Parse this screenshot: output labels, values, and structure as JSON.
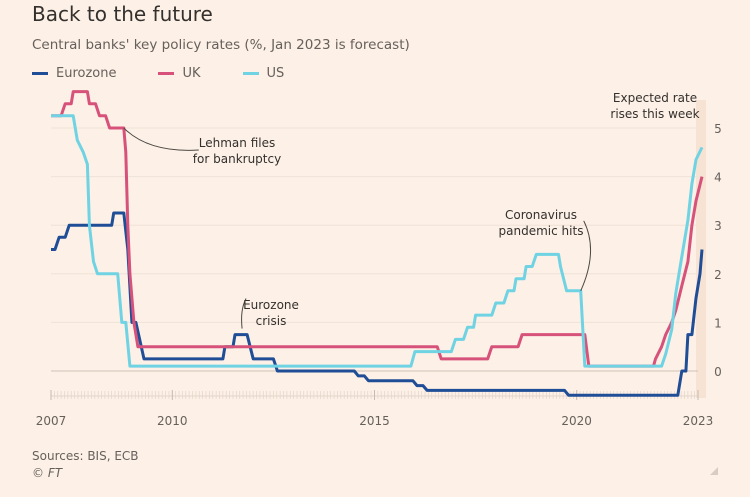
{
  "header": {
    "title": "Back to the future",
    "subtitle": "Central banks' key policy rates (%, Jan 2023 is forecast)"
  },
  "footer": {
    "sources": "Sources: BIS, ECB",
    "copyright": "© FT"
  },
  "chart_data": {
    "type": "line",
    "title": "Back to the future",
    "subtitle": "Central banks' key policy rates (%, Jan 2023 is forecast)",
    "xlabel": "",
    "ylabel": "%",
    "xlim": [
      2007,
      2023
    ],
    "ylim": [
      -0.6,
      5.5
    ],
    "x_ticks": [
      2007,
      2010,
      2015,
      2020,
      2023
    ],
    "y_ticks": [
      0,
      1,
      2,
      3,
      4,
      5
    ],
    "grid": true,
    "legend_position": "top-left",
    "series": [
      {
        "name": "Eurozone",
        "color": "#1f4e96",
        "points": [
          [
            2007.0,
            2.5
          ],
          [
            2007.1,
            2.5
          ],
          [
            2007.2,
            2.75
          ],
          [
            2007.35,
            2.75
          ],
          [
            2007.45,
            3.0
          ],
          [
            2008.5,
            3.0
          ],
          [
            2008.55,
            3.25
          ],
          [
            2008.8,
            3.25
          ],
          [
            2008.9,
            2.5
          ],
          [
            2009.0,
            1.0
          ],
          [
            2009.1,
            1.0
          ],
          [
            2009.3,
            0.25
          ],
          [
            2011.25,
            0.25
          ],
          [
            2011.3,
            0.5
          ],
          [
            2011.5,
            0.5
          ],
          [
            2011.55,
            0.75
          ],
          [
            2011.85,
            0.75
          ],
          [
            2012.0,
            0.25
          ],
          [
            2012.5,
            0.25
          ],
          [
            2012.6,
            0.0
          ],
          [
            2014.5,
            0.0
          ],
          [
            2014.6,
            -0.1
          ],
          [
            2014.75,
            -0.1
          ],
          [
            2014.85,
            -0.2
          ],
          [
            2015.95,
            -0.2
          ],
          [
            2016.05,
            -0.3
          ],
          [
            2016.2,
            -0.3
          ],
          [
            2016.3,
            -0.4
          ],
          [
            2019.7,
            -0.4
          ],
          [
            2019.8,
            -0.5
          ],
          [
            2022.5,
            -0.5
          ],
          [
            2022.6,
            0.0
          ],
          [
            2022.7,
            0.0
          ],
          [
            2022.75,
            0.75
          ],
          [
            2022.85,
            0.75
          ],
          [
            2022.95,
            1.5
          ],
          [
            2023.05,
            2.0
          ],
          [
            2023.1,
            2.5
          ]
        ]
      },
      {
        "name": "UK",
        "color": "#d6527a",
        "points": [
          [
            2007.0,
            5.25
          ],
          [
            2007.25,
            5.25
          ],
          [
            2007.35,
            5.5
          ],
          [
            2007.5,
            5.5
          ],
          [
            2007.55,
            5.75
          ],
          [
            2007.9,
            5.75
          ],
          [
            2007.95,
            5.5
          ],
          [
            2008.1,
            5.5
          ],
          [
            2008.2,
            5.25
          ],
          [
            2008.35,
            5.25
          ],
          [
            2008.45,
            5.0
          ],
          [
            2008.8,
            5.0
          ],
          [
            2008.85,
            4.5
          ],
          [
            2008.9,
            3.0
          ],
          [
            2008.95,
            2.0
          ],
          [
            2009.05,
            1.0
          ],
          [
            2009.15,
            0.5
          ],
          [
            2016.55,
            0.5
          ],
          [
            2016.65,
            0.25
          ],
          [
            2017.8,
            0.25
          ],
          [
            2017.9,
            0.5
          ],
          [
            2018.55,
            0.5
          ],
          [
            2018.65,
            0.75
          ],
          [
            2020.2,
            0.75
          ],
          [
            2020.3,
            0.1
          ],
          [
            2021.9,
            0.1
          ],
          [
            2021.95,
            0.25
          ],
          [
            2022.1,
            0.5
          ],
          [
            2022.2,
            0.75
          ],
          [
            2022.35,
            1.0
          ],
          [
            2022.45,
            1.25
          ],
          [
            2022.6,
            1.75
          ],
          [
            2022.75,
            2.25
          ],
          [
            2022.85,
            3.0
          ],
          [
            2022.95,
            3.5
          ],
          [
            2023.1,
            4.0
          ]
        ]
      },
      {
        "name": "US",
        "color": "#6fd3e3",
        "points": [
          [
            2007.0,
            5.25
          ],
          [
            2007.55,
            5.25
          ],
          [
            2007.65,
            4.75
          ],
          [
            2007.8,
            4.5
          ],
          [
            2007.9,
            4.25
          ],
          [
            2007.95,
            3.0
          ],
          [
            2008.05,
            2.25
          ],
          [
            2008.15,
            2.0
          ],
          [
            2008.65,
            2.0
          ],
          [
            2008.75,
            1.0
          ],
          [
            2008.85,
            1.0
          ],
          [
            2008.95,
            0.1
          ],
          [
            2015.9,
            0.1
          ],
          [
            2016.0,
            0.4
          ],
          [
            2016.9,
            0.4
          ],
          [
            2017.0,
            0.65
          ],
          [
            2017.2,
            0.65
          ],
          [
            2017.3,
            0.9
          ],
          [
            2017.45,
            0.9
          ],
          [
            2017.5,
            1.15
          ],
          [
            2017.9,
            1.15
          ],
          [
            2018.0,
            1.4
          ],
          [
            2018.2,
            1.4
          ],
          [
            2018.3,
            1.65
          ],
          [
            2018.45,
            1.65
          ],
          [
            2018.5,
            1.9
          ],
          [
            2018.7,
            1.9
          ],
          [
            2018.75,
            2.15
          ],
          [
            2018.9,
            2.15
          ],
          [
            2019.0,
            2.4
          ],
          [
            2019.55,
            2.4
          ],
          [
            2019.6,
            2.15
          ],
          [
            2019.75,
            1.65
          ],
          [
            2020.1,
            1.65
          ],
          [
            2020.2,
            0.1
          ],
          [
            2022.1,
            0.1
          ],
          [
            2022.2,
            0.35
          ],
          [
            2022.35,
            0.85
          ],
          [
            2022.45,
            1.6
          ],
          [
            2022.6,
            2.35
          ],
          [
            2022.75,
            3.1
          ],
          [
            2022.85,
            3.85
          ],
          [
            2022.95,
            4.35
          ],
          [
            2023.1,
            4.6
          ]
        ]
      }
    ],
    "annotations": [
      {
        "id": "lehman",
        "lines": [
          "Lehman files",
          "for bankruptcy"
        ],
        "x": 2008.8,
        "y": 5.0
      },
      {
        "id": "eurozone-crisis",
        "lines": [
          "Eurozone",
          "crisis"
        ],
        "x": 2011.75,
        "y": 0.75
      },
      {
        "id": "coronavirus",
        "lines": [
          "Coronavirus",
          "pandemic hits"
        ],
        "x": 2020.1,
        "y": 1.65
      },
      {
        "id": "expected",
        "lines": [
          "Expected rate",
          "rises this week"
        ],
        "x": 2023.0,
        "y": 5.3
      }
    ]
  }
}
